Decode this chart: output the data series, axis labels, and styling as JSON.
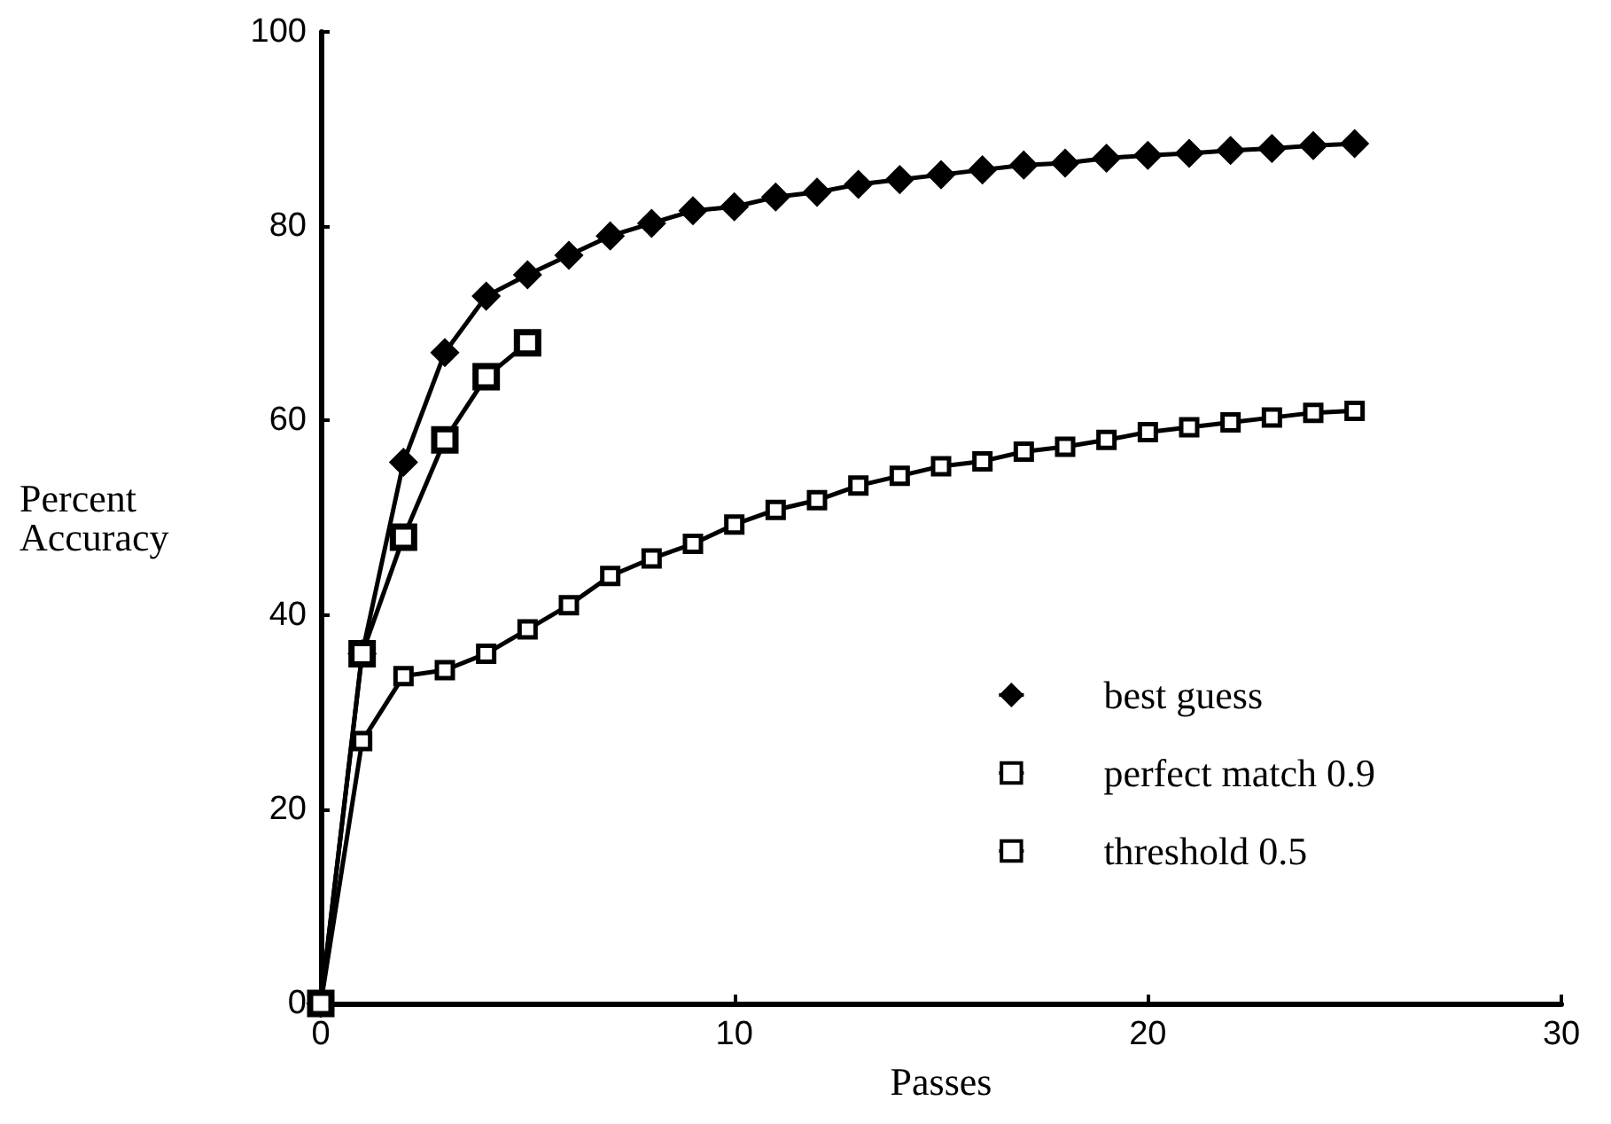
{
  "chart_data": {
    "type": "line",
    "xlabel": "Passes",
    "ylabel": "Percent\nAccuracy",
    "xlim": [
      0,
      30
    ],
    "xticks": [
      0,
      10,
      20,
      30
    ],
    "ylim": [
      0,
      100
    ],
    "yticks": [
      0,
      20,
      40,
      60,
      80,
      100
    ],
    "grid": false,
    "legend": "bottom right",
    "series": [
      {
        "name": "best guess",
        "color": "#000000",
        "marker": "diamond",
        "x": [
          0,
          1,
          2,
          3,
          4,
          5,
          6,
          7,
          8,
          9,
          10,
          11,
          12,
          13,
          14,
          15,
          16,
          17,
          18,
          19,
          20,
          21,
          22,
          23,
          24,
          25
        ],
        "values": [
          0,
          36,
          55.7,
          67,
          72.8,
          75,
          77,
          79,
          80.3,
          81.6,
          82,
          83,
          83.5,
          84.3,
          84.8,
          85.3,
          85.8,
          86.3,
          86.5,
          87,
          87.3,
          87.5,
          87.8,
          88,
          88.3,
          88.5
        ]
      },
      {
        "name": "perfect match 0.9",
        "color": "#000000",
        "marker": "square",
        "x": [
          0,
          1,
          2,
          3,
          4,
          5,
          6,
          7,
          8,
          9,
          10,
          11,
          12,
          13,
          14,
          15,
          16,
          17,
          18,
          19,
          20,
          21,
          22,
          23,
          24,
          25
        ],
        "values": [
          0,
          27,
          33.7,
          34.3,
          36,
          38.5,
          41,
          44,
          45.8,
          47.3,
          49.3,
          50.8,
          51.8,
          53.3,
          54.3,
          55.3,
          55.8,
          56.8,
          57.3,
          58,
          58.8,
          59.3,
          59.8,
          60.3,
          60.8,
          61
        ]
      },
      {
        "name": "threshold 0.5",
        "color": "#000000",
        "marker": "square",
        "x": [
          0,
          1,
          2,
          3,
          4,
          5
        ],
        "values": [
          0,
          36,
          48,
          58,
          64.5,
          68
        ]
      }
    ]
  }
}
